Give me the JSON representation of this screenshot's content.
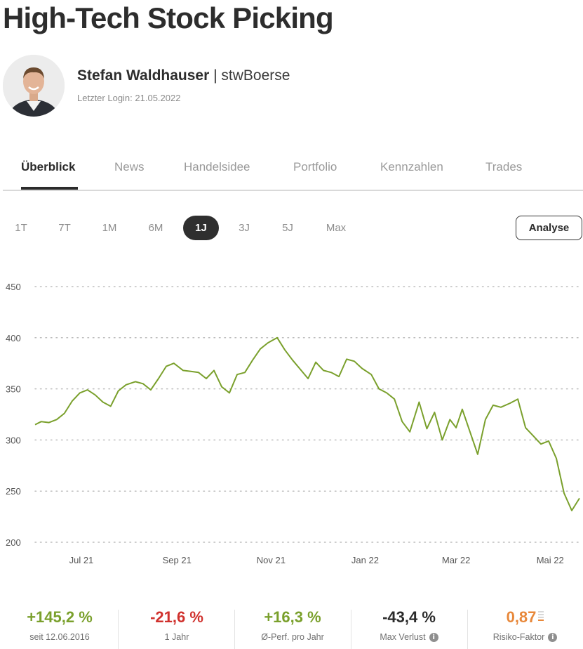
{
  "page": {
    "title": "High-Tech Stock Picking"
  },
  "profile": {
    "name": "Stefan Waldhauser",
    "separator": "|",
    "handle": "stwBoerse",
    "last_login": "Letzter Login: 21.05.2022"
  },
  "tabs": [
    {
      "label": "Überblick",
      "active": true
    },
    {
      "label": "News",
      "active": false
    },
    {
      "label": "Handelsidee",
      "active": false
    },
    {
      "label": "Portfolio",
      "active": false
    },
    {
      "label": "Kennzahlen",
      "active": false
    },
    {
      "label": "Trades",
      "active": false
    }
  ],
  "ranges": [
    {
      "label": "1T",
      "active": false
    },
    {
      "label": "7T",
      "active": false
    },
    {
      "label": "1M",
      "active": false
    },
    {
      "label": "6M",
      "active": false
    },
    {
      "label": "1J",
      "active": true
    },
    {
      "label": "3J",
      "active": false
    },
    {
      "label": "5J",
      "active": false
    },
    {
      "label": "Max",
      "active": false
    }
  ],
  "analyse_label": "Analyse",
  "chart_data": {
    "type": "line",
    "x_tick_labels": [
      "Jul 21",
      "Sep 21",
      "Nov 21",
      "Jan 22",
      "Mar 22",
      "Mai 22"
    ],
    "y_ticks": [
      200,
      250,
      300,
      350,
      400,
      450
    ],
    "ylim": [
      200,
      450
    ],
    "grid": true,
    "line_color": "#7aa02c",
    "x": [
      "2021-06-01",
      "2021-06-05",
      "2021-06-10",
      "2021-06-15",
      "2021-06-20",
      "2021-06-25",
      "2021-06-30",
      "2021-07-05",
      "2021-07-10",
      "2021-07-15",
      "2021-07-20",
      "2021-07-25",
      "2021-07-30",
      "2021-08-05",
      "2021-08-10",
      "2021-08-15",
      "2021-08-20",
      "2021-08-25",
      "2021-08-30",
      "2021-09-05",
      "2021-09-10",
      "2021-09-15",
      "2021-09-20",
      "2021-09-25",
      "2021-09-30",
      "2021-10-05",
      "2021-10-10",
      "2021-10-15",
      "2021-10-20",
      "2021-10-25",
      "2021-10-30",
      "2021-11-05",
      "2021-11-10",
      "2021-11-15",
      "2021-11-20",
      "2021-11-25",
      "2021-11-30",
      "2021-12-05",
      "2021-12-10",
      "2021-12-15",
      "2021-12-20",
      "2021-12-25",
      "2021-12-30",
      "2022-01-05",
      "2022-01-10",
      "2022-01-15",
      "2022-01-20",
      "2022-01-25",
      "2022-01-30",
      "2022-02-05",
      "2022-02-10",
      "2022-02-15",
      "2022-02-20",
      "2022-02-25",
      "2022-03-01",
      "2022-03-05",
      "2022-03-10",
      "2022-03-15",
      "2022-03-20",
      "2022-03-25",
      "2022-03-30",
      "2022-04-05",
      "2022-04-10",
      "2022-04-15",
      "2022-04-20",
      "2022-04-25",
      "2022-04-30",
      "2022-05-05",
      "2022-05-10",
      "2022-05-15",
      "2022-05-20"
    ],
    "series": [
      {
        "values": [
          315,
          318,
          317,
          320,
          326,
          338,
          346,
          349,
          344,
          337,
          333,
          348,
          354,
          357,
          355,
          349,
          360,
          372,
          375,
          368,
          367,
          366,
          360,
          368,
          352,
          346,
          364,
          366,
          378,
          389,
          395,
          400,
          388,
          378,
          369,
          360,
          376,
          368,
          366,
          362,
          379,
          377,
          370,
          364,
          350,
          346,
          340,
          318,
          308,
          337,
          311,
          327,
          300,
          320,
          312,
          330,
          308,
          286,
          320,
          334,
          332,
          336,
          340,
          312,
          304,
          296,
          299,
          282,
          248,
          231,
          243
        ]
      }
    ]
  },
  "stats": [
    {
      "value": "+145,2 %",
      "label": "seit 12.06.2016",
      "color": "#7aa02c",
      "info": false
    },
    {
      "value": "-21,6 %",
      "label": "1 Jahr",
      "color": "#d0312d",
      "info": false
    },
    {
      "value": "+16,3 %",
      "label": "Ø-Perf. pro Jahr",
      "color": "#7aa02c",
      "info": false
    },
    {
      "value": "-43,4 %",
      "label": "Max Verlust",
      "color": "#2b2b2b",
      "info": true
    },
    {
      "value": "0,87",
      "label": "Risiko-Faktor",
      "color": "#e8883a",
      "info": true,
      "risk_level": 1
    }
  ],
  "icons": {
    "info": "info-icon",
    "risk": "risk-level-icon"
  }
}
